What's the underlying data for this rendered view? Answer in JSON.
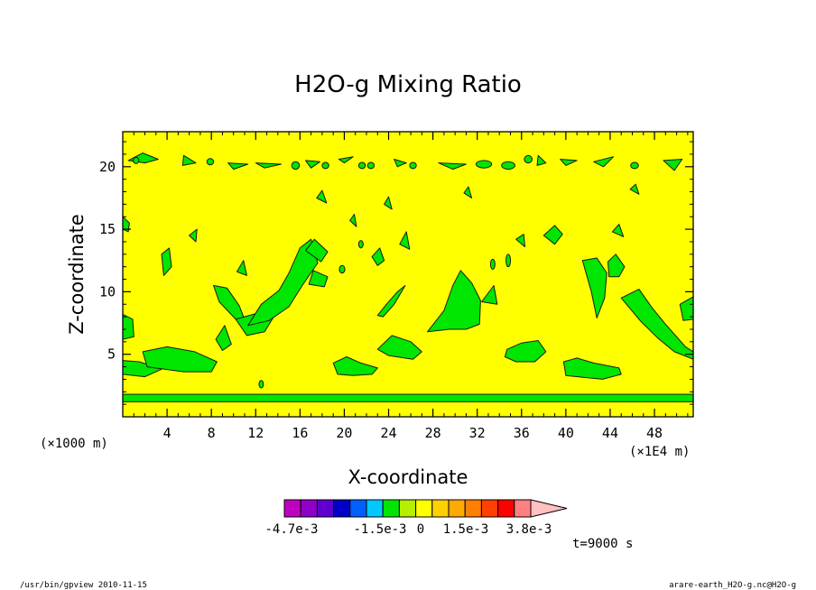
{
  "chart_data": {
    "type": "contour",
    "title": "H2O-g Mixing Ratio",
    "xlabel": "X-coordinate",
    "ylabel": "Z-coordinate",
    "x_unit": "(×1E4 m)",
    "y_unit": "(×1000 m)",
    "xlim": [
      0,
      51.5
    ],
    "ylim": [
      0,
      22.8
    ],
    "x_ticks": [
      "4",
      "8",
      "12",
      "16",
      "20",
      "24",
      "28",
      "32",
      "36",
      "40",
      "44",
      "48"
    ],
    "y_ticks": [
      "5",
      "10",
      "15",
      "20"
    ],
    "background_color": "#ffff00",
    "anomaly_color": "#00e600",
    "colorbar": {
      "colors": [
        "#c000c0",
        "#9000c8",
        "#6000d0",
        "#0000c8",
        "#0060ff",
        "#00c8ff",
        "#00e600",
        "#b4f000",
        "#ffff00",
        "#ffd000",
        "#ffaa00",
        "#ff8000",
        "#ff4000",
        "#ff0000",
        "#ff8080",
        "#ffc0c0"
      ],
      "labels": [
        "-4.7e-3",
        "-1.5e-3",
        "0",
        "1.5e-3",
        "3.8e-3"
      ]
    },
    "time_label": "t=9000 s",
    "patches": [
      {
        "points": [
          [
            0,
            4.5
          ],
          [
            1.5,
            4.4
          ],
          [
            3.5,
            3.8
          ],
          [
            2,
            3.2
          ],
          [
            0,
            3.4
          ]
        ]
      },
      {
        "points": [
          [
            1.8,
            5.2
          ],
          [
            4,
            5.6
          ],
          [
            6.5,
            5.2
          ],
          [
            8.5,
            4.4
          ],
          [
            8,
            3.6
          ],
          [
            5.5,
            3.6
          ],
          [
            2.2,
            4
          ]
        ]
      },
      {
        "points": [
          [
            0,
            8.2
          ],
          [
            0.9,
            7.8
          ],
          [
            1,
            6.4
          ],
          [
            0,
            6.2
          ]
        ]
      },
      {
        "points": [
          [
            8.4,
            6.2
          ],
          [
            9.2,
            7.3
          ],
          [
            9.8,
            5.8
          ],
          [
            9,
            5.3
          ]
        ]
      },
      {
        "points": [
          [
            8.2,
            10.5
          ],
          [
            9.4,
            10.3
          ],
          [
            10.5,
            8.9
          ],
          [
            11.3,
            7.1
          ],
          [
            10.2,
            7.8
          ],
          [
            8.7,
            9.2
          ]
        ]
      },
      {
        "points": [
          [
            10.2,
            7.8
          ],
          [
            11.2,
            6.5
          ],
          [
            12.8,
            6.8
          ],
          [
            13.7,
            8.1
          ],
          [
            13.8,
            9.8
          ],
          [
            12.6,
            8.4
          ]
        ]
      },
      {
        "points": [
          [
            11.3,
            7.3
          ],
          [
            12.5,
            9
          ],
          [
            14.1,
            10.1
          ],
          [
            15,
            11.5
          ],
          [
            16,
            13.5
          ],
          [
            17,
            14.2
          ],
          [
            17.6,
            12.3
          ],
          [
            16.2,
            10.5
          ],
          [
            15,
            8.8
          ],
          [
            13.2,
            7.7
          ]
        ]
      },
      {
        "points": [
          [
            16.5,
            13.3
          ],
          [
            17.3,
            14.2
          ],
          [
            18.5,
            13.2
          ],
          [
            17.9,
            12.4
          ]
        ]
      },
      {
        "points": [
          [
            10.3,
            11.6
          ],
          [
            10.9,
            12.5
          ],
          [
            11.2,
            11.3
          ]
        ]
      },
      {
        "points": [
          [
            16.8,
            10.6
          ],
          [
            17.2,
            11.7
          ],
          [
            18.5,
            11.2
          ],
          [
            18.2,
            10.4
          ]
        ]
      },
      {
        "points": [
          [
            19,
            4.3
          ],
          [
            20.2,
            4.8
          ],
          [
            21.5,
            4.3
          ],
          [
            23,
            3.9
          ],
          [
            22.5,
            3.4
          ],
          [
            20.8,
            3.3
          ],
          [
            19.4,
            3.4
          ]
        ]
      },
      {
        "points": [
          [
            23,
            8.1
          ],
          [
            23.8,
            9
          ],
          [
            24.8,
            10
          ],
          [
            25.5,
            10.5
          ],
          [
            24.5,
            9
          ],
          [
            23.5,
            8
          ]
        ]
      },
      {
        "points": [
          [
            23,
            5.4
          ],
          [
            24.3,
            6.5
          ],
          [
            26,
            6
          ],
          [
            27,
            5.2
          ],
          [
            26.2,
            4.6
          ],
          [
            24,
            4.9
          ]
        ]
      },
      {
        "points": [
          [
            22.5,
            12.8
          ],
          [
            23.2,
            13.5
          ],
          [
            23.6,
            12.5
          ],
          [
            23,
            12.1
          ]
        ]
      },
      {
        "points": [
          [
            25,
            13.8
          ],
          [
            25.6,
            14.8
          ],
          [
            25.9,
            13.4
          ]
        ]
      },
      {
        "points": [
          [
            27.5,
            6.8
          ],
          [
            29,
            8.5
          ],
          [
            29.8,
            10.5
          ],
          [
            30.5,
            11.7
          ],
          [
            31.5,
            10.7
          ],
          [
            32.3,
            9.3
          ],
          [
            32.2,
            7.4
          ],
          [
            31,
            7
          ],
          [
            29.5,
            7
          ]
        ]
      },
      {
        "points": [
          [
            32.4,
            9.2
          ],
          [
            33.5,
            10.5
          ],
          [
            33.8,
            9
          ]
        ]
      },
      {
        "points": [
          [
            34.7,
            5.4
          ],
          [
            36,
            5.9
          ],
          [
            37.5,
            6.1
          ],
          [
            38.2,
            5.2
          ],
          [
            37.2,
            4.4
          ],
          [
            35.5,
            4.4
          ],
          [
            34.5,
            4.8
          ]
        ]
      },
      {
        "points": [
          [
            38,
            14.5
          ],
          [
            39,
            15.3
          ],
          [
            39.7,
            14.6
          ],
          [
            39,
            13.8
          ]
        ]
      },
      {
        "points": [
          [
            39.8,
            4.4
          ],
          [
            41,
            4.7
          ],
          [
            42.5,
            4.3
          ],
          [
            44.8,
            3.9
          ],
          [
            45,
            3.4
          ],
          [
            43.3,
            3
          ],
          [
            40,
            3.3
          ]
        ]
      },
      {
        "points": [
          [
            41.5,
            12.5
          ],
          [
            42.3,
            10
          ],
          [
            42.8,
            7.9
          ],
          [
            43.5,
            9.5
          ],
          [
            43.7,
            11.5
          ],
          [
            42.8,
            12.7
          ]
        ]
      },
      {
        "points": [
          [
            43.8,
            12.4
          ],
          [
            44.5,
            13
          ],
          [
            45.3,
            12
          ],
          [
            44.8,
            11.2
          ],
          [
            43.9,
            11.2
          ]
        ]
      },
      {
        "points": [
          [
            45,
            9.5
          ],
          [
            46.6,
            10.2
          ],
          [
            47.8,
            8.7
          ],
          [
            49,
            7.4
          ],
          [
            50.8,
            5.6
          ],
          [
            51.5,
            5.2
          ],
          [
            51.5,
            4.6
          ],
          [
            49.8,
            5.2
          ],
          [
            48.3,
            6.3
          ],
          [
            46.8,
            7.6
          ]
        ]
      },
      {
        "points": [
          [
            50.3,
            9
          ],
          [
            51.5,
            9.6
          ],
          [
            51.5,
            7.8
          ],
          [
            50.6,
            7.7
          ]
        ]
      },
      {
        "points": [
          [
            0,
            16
          ],
          [
            0.6,
            15.5
          ],
          [
            0.5,
            14.8
          ],
          [
            0,
            15
          ]
        ]
      },
      {
        "points": [
          [
            3.5,
            13
          ],
          [
            4.2,
            13.5
          ],
          [
            4.4,
            12
          ],
          [
            3.7,
            11.3
          ]
        ]
      },
      {
        "points": [
          [
            6,
            14.5
          ],
          [
            6.7,
            15
          ],
          [
            6.6,
            14
          ]
        ]
      },
      {
        "points": [
          [
            20.5,
            15.7
          ],
          [
            20.9,
            16.2
          ],
          [
            21.1,
            15.2
          ]
        ]
      },
      {
        "points": [
          [
            35.5,
            14.2
          ],
          [
            36.2,
            14.6
          ],
          [
            36.3,
            13.6
          ]
        ]
      },
      {
        "points": [
          [
            44.2,
            14.8
          ],
          [
            44.8,
            15.4
          ],
          [
            45.2,
            14.4
          ]
        ]
      },
      {
        "points": [
          [
            17.5,
            17.5
          ],
          [
            18,
            18.1
          ],
          [
            18.4,
            17.1
          ]
        ]
      },
      {
        "points": [
          [
            23.6,
            17
          ],
          [
            24,
            17.6
          ],
          [
            24.3,
            16.6
          ]
        ]
      },
      {
        "points": [
          [
            30.8,
            17.9
          ],
          [
            31.2,
            18.4
          ],
          [
            31.5,
            17.5
          ]
        ]
      },
      {
        "points": [
          [
            45.8,
            18.2
          ],
          [
            46.3,
            18.6
          ],
          [
            46.6,
            17.8
          ]
        ]
      },
      {
        "points": [
          [
            0.5,
            20.5
          ],
          [
            2,
            20.3
          ],
          [
            3.2,
            20.6
          ],
          [
            1.8,
            21.1
          ]
        ]
      },
      {
        "points": [
          [
            5.5,
            20.9
          ],
          [
            6.6,
            20.3
          ],
          [
            5.4,
            20.1
          ]
        ]
      },
      {
        "points": [
          [
            9.5,
            20.3
          ],
          [
            11.3,
            20.2
          ],
          [
            10,
            19.8
          ]
        ]
      },
      {
        "points": [
          [
            12,
            20.3
          ],
          [
            14.3,
            20.2
          ],
          [
            12.8,
            19.9
          ]
        ]
      },
      {
        "points": [
          [
            16.5,
            20.5
          ],
          [
            17.8,
            20.4
          ],
          [
            17,
            19.9
          ]
        ]
      },
      {
        "points": [
          [
            19.5,
            20.6
          ],
          [
            20.8,
            20.8
          ],
          [
            20,
            20.3
          ]
        ]
      },
      {
        "points": [
          [
            24.5,
            20.6
          ],
          [
            25.6,
            20.3
          ],
          [
            24.8,
            20
          ]
        ]
      },
      {
        "points": [
          [
            28.5,
            20.3
          ],
          [
            31,
            20.2
          ],
          [
            29.8,
            19.8
          ]
        ]
      },
      {
        "points": [
          [
            37.5,
            20.9
          ],
          [
            38.2,
            20.3
          ],
          [
            37.4,
            20.1
          ]
        ]
      },
      {
        "points": [
          [
            39.5,
            20.6
          ],
          [
            41,
            20.5
          ],
          [
            40,
            20.1
          ]
        ]
      },
      {
        "points": [
          [
            42.5,
            20.4
          ],
          [
            44.3,
            20.8
          ],
          [
            43.4,
            20
          ]
        ]
      },
      {
        "points": [
          [
            48.8,
            20.5
          ],
          [
            50.5,
            20.6
          ],
          [
            49.8,
            19.7
          ]
        ]
      }
    ],
    "ellipses": [
      {
        "cx": 1.2,
        "cy": 20.5,
        "rx": 0.25,
        "ry": 0.25
      },
      {
        "cx": 15.6,
        "cy": 20.1,
        "rx": 0.35,
        "ry": 0.3
      },
      {
        "cx": 18.3,
        "cy": 20.1,
        "rx": 0.3,
        "ry": 0.25
      },
      {
        "cx": 21.6,
        "cy": 20.1,
        "rx": 0.3,
        "ry": 0.25
      },
      {
        "cx": 22.4,
        "cy": 20.1,
        "rx": 0.3,
        "ry": 0.25
      },
      {
        "cx": 26.2,
        "cy": 20.1,
        "rx": 0.3,
        "ry": 0.25
      },
      {
        "cx": 32.6,
        "cy": 20.2,
        "rx": 0.7,
        "ry": 0.3
      },
      {
        "cx": 34.8,
        "cy": 20.1,
        "rx": 0.6,
        "ry": 0.3
      },
      {
        "cx": 46.2,
        "cy": 20.1,
        "rx": 0.35,
        "ry": 0.25
      },
      {
        "cx": 36.6,
        "cy": 20.6,
        "rx": 0.35,
        "ry": 0.3
      },
      {
        "cx": 7.9,
        "cy": 20.4,
        "rx": 0.3,
        "ry": 0.25
      },
      {
        "cx": 12.5,
        "cy": 2.6,
        "rx": 0.2,
        "ry": 0.3
      },
      {
        "cx": 33.4,
        "cy": 12.2,
        "rx": 0.2,
        "ry": 0.4
      },
      {
        "cx": 34.8,
        "cy": 12.5,
        "rx": 0.2,
        "ry": 0.5
      },
      {
        "cx": 21.5,
        "cy": 13.8,
        "rx": 0.2,
        "ry": 0.3
      },
      {
        "cx": 19.8,
        "cy": 11.8,
        "rx": 0.25,
        "ry": 0.3
      }
    ],
    "band": {
      "y0": 1.2,
      "y1": 1.8
    }
  },
  "footer": {
    "left": "/usr/bin/gpview  2010-11-15",
    "right": "arare-earth_H2O-g.nc@H2O-g"
  }
}
